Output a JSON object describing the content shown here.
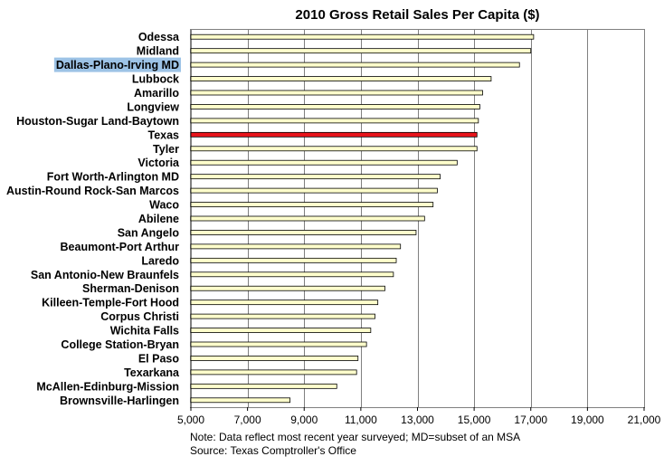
{
  "chart_data": {
    "type": "bar",
    "orientation": "horizontal",
    "title": "2010 Gross Retail Sales Per Capita ($)",
    "xlabel": "",
    "ylabel": "",
    "xlim": [
      5000,
      21000
    ],
    "ticks": [
      5000,
      7000,
      9000,
      11000,
      13000,
      15000,
      17000,
      19000,
      21000
    ],
    "tick_labels": [
      "5,000",
      "7,000",
      "9,000",
      "11,000",
      "13,000",
      "15,000",
      "17,000",
      "19,000",
      "21,000"
    ],
    "grid": true,
    "categories": [
      "Odessa",
      "Midland",
      "Dallas-Plano-Irving MD",
      "Lubbock",
      "Amarillo",
      "Longview",
      "Houston-Sugar Land-Baytown",
      "Texas",
      "Tyler",
      "Victoria",
      "Fort Worth-Arlington MD",
      "Austin-Round Rock-San Marcos",
      "Waco",
      "Abilene",
      "San Angelo",
      "Beaumont-Port Arthur",
      "Laredo",
      "San Antonio-New Braunfels",
      "Sherman-Denison",
      "Killeen-Temple-Fort Hood",
      "Corpus Christi",
      "Wichita Falls",
      "College Station-Bryan",
      "El Paso",
      "Texarkana",
      "McAllen-Edinburg-Mission",
      "Brownsville-Harlingen"
    ],
    "values": [
      17100,
      17000,
      16600,
      15600,
      15300,
      15200,
      15150,
      15100,
      15100,
      14400,
      13800,
      13700,
      13550,
      13250,
      12950,
      12400,
      12250,
      12150,
      11850,
      11600,
      11500,
      11350,
      11200,
      10900,
      10850,
      10150,
      8500
    ],
    "bar_color": "#FFFFCC",
    "highlight": {
      "category": "Texas",
      "color": "#E8141B"
    },
    "label_highlight": {
      "category": "Dallas-Plano-Irving MD",
      "color": "#9DC3E6"
    }
  },
  "footnote": {
    "line1": "Note: Data reflect most recent year surveyed; MD=subset of an MSA",
    "line2": "Source: Texas Comptroller's Office"
  }
}
